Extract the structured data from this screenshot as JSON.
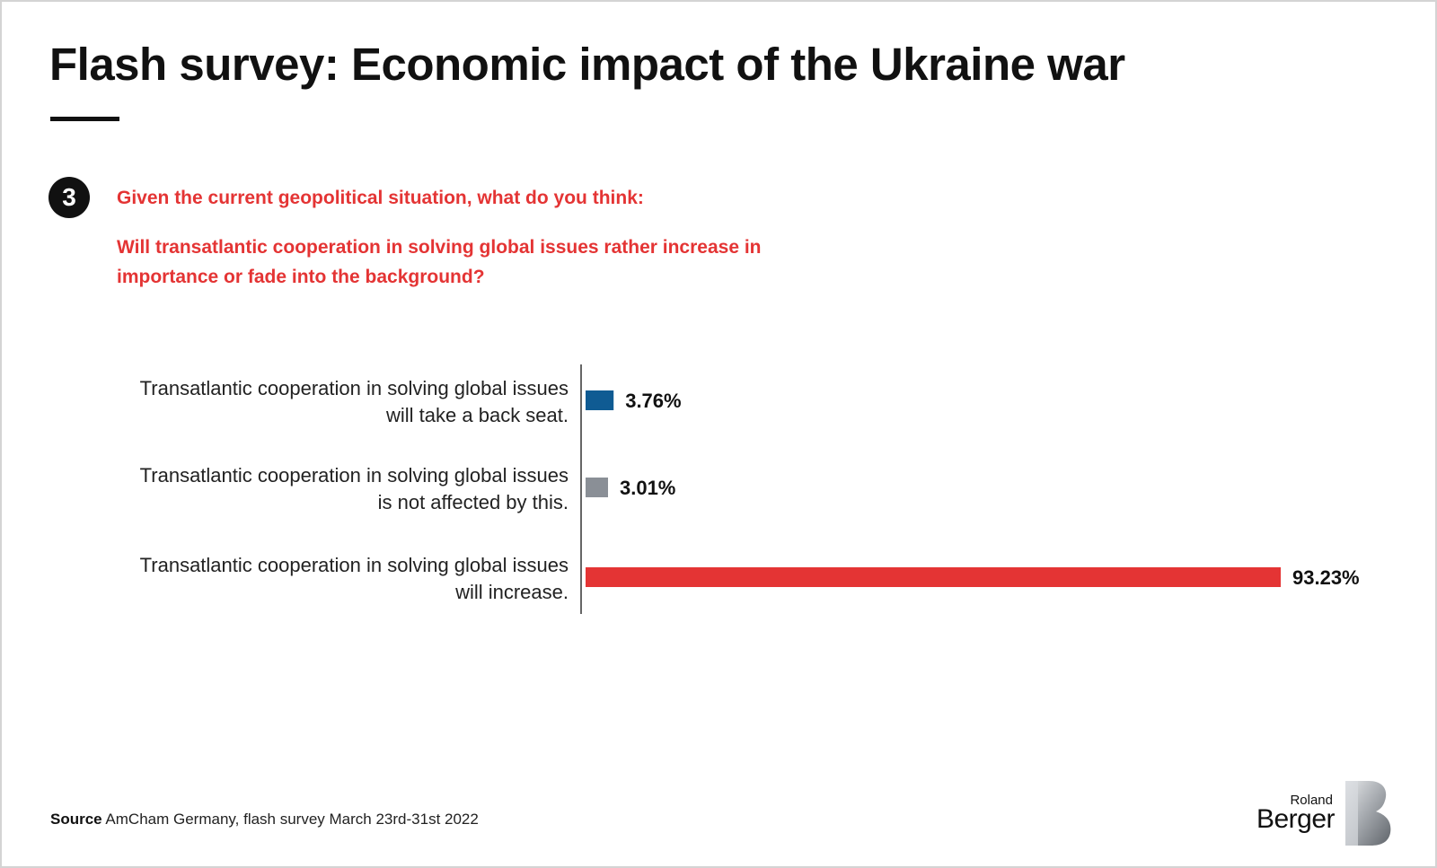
{
  "header": {
    "title": "Flash survey: Economic impact of the Ukraine war"
  },
  "question": {
    "number": "3",
    "line1": "Given the current geopolitical situation, what do you think:",
    "line2": "Will transatlantic cooperation in solving global issues rather increase in importance or fade into the background?"
  },
  "chart_data": {
    "type": "bar",
    "orientation": "horizontal",
    "categories": [
      [
        "Transatlantic cooperation in solving global issues",
        "will take a back seat."
      ],
      [
        "Transatlantic cooperation in solving global issues",
        "is not affected by this."
      ],
      [
        "Transatlantic cooperation in solving global issues",
        "will increase."
      ]
    ],
    "values": [
      3.76,
      3.01,
      93.23
    ],
    "value_labels": [
      "3.76%",
      "3.01%",
      "93.23%"
    ],
    "colors": [
      "#0f5b93",
      "#8a8f96",
      "#e43434"
    ],
    "unit": "%",
    "xlim": [
      0,
      93.23
    ],
    "grid": false
  },
  "footer": {
    "source_label": "Source",
    "source_text": " AmCham Germany, flash survey March 23rd-31st 2022",
    "logo_small": "Roland",
    "logo_big": "Berger"
  }
}
